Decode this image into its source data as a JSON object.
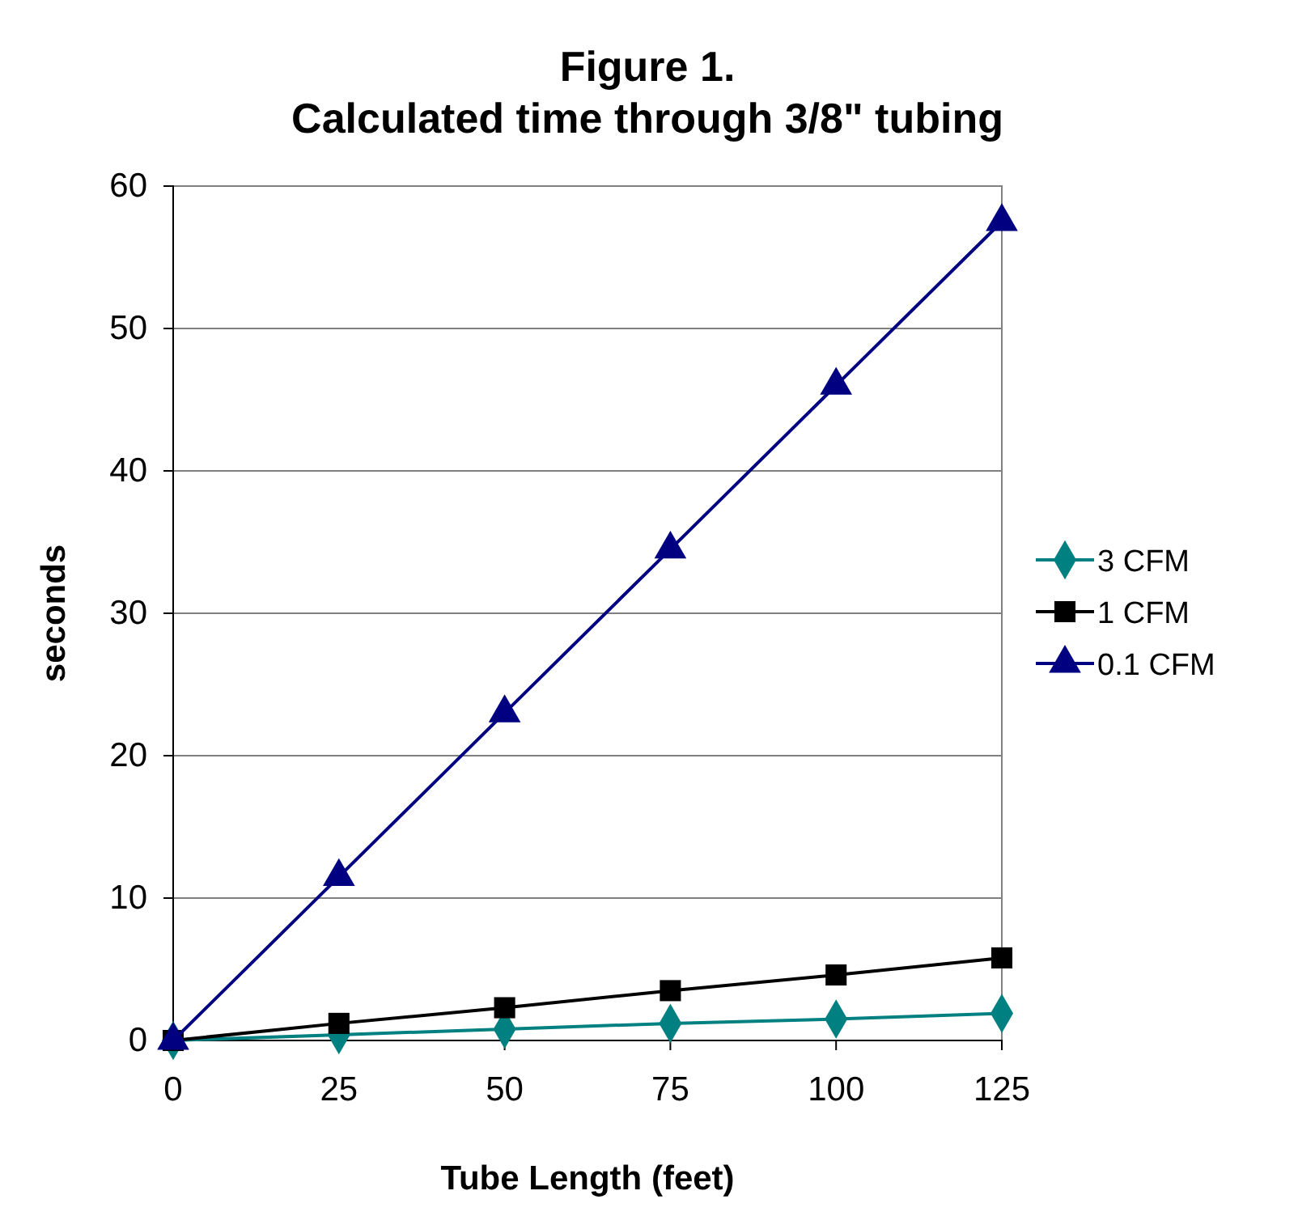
{
  "chart_data": {
    "type": "line",
    "title": "Figure 1.\nCalculated time through 3/8\" tubing",
    "xlabel": "Tube Length (feet)",
    "ylabel": "seconds",
    "x": [
      0,
      25,
      50,
      75,
      100,
      125
    ],
    "series": [
      {
        "name": "3 CFM",
        "color": "#008080",
        "marker": "diamond",
        "values": [
          0,
          0.4,
          0.8,
          1.2,
          1.5,
          1.9
        ]
      },
      {
        "name": "1 CFM",
        "color": "#000000",
        "marker": "square",
        "values": [
          0,
          1.2,
          2.3,
          3.5,
          4.6,
          5.8
        ]
      },
      {
        "name": "0.1 CFM",
        "color": "#000080",
        "marker": "triangle",
        "values": [
          0,
          11.5,
          23,
          34.5,
          46,
          57.5
        ]
      }
    ],
    "xlim": [
      0,
      125
    ],
    "xticks": [
      0,
      25,
      50,
      75,
      100,
      125
    ],
    "ylim": [
      0,
      60
    ],
    "yticks": [
      0,
      10,
      20,
      30,
      40,
      50,
      60
    ],
    "grid": "y",
    "legend": "right",
    "line_style": "solid"
  }
}
